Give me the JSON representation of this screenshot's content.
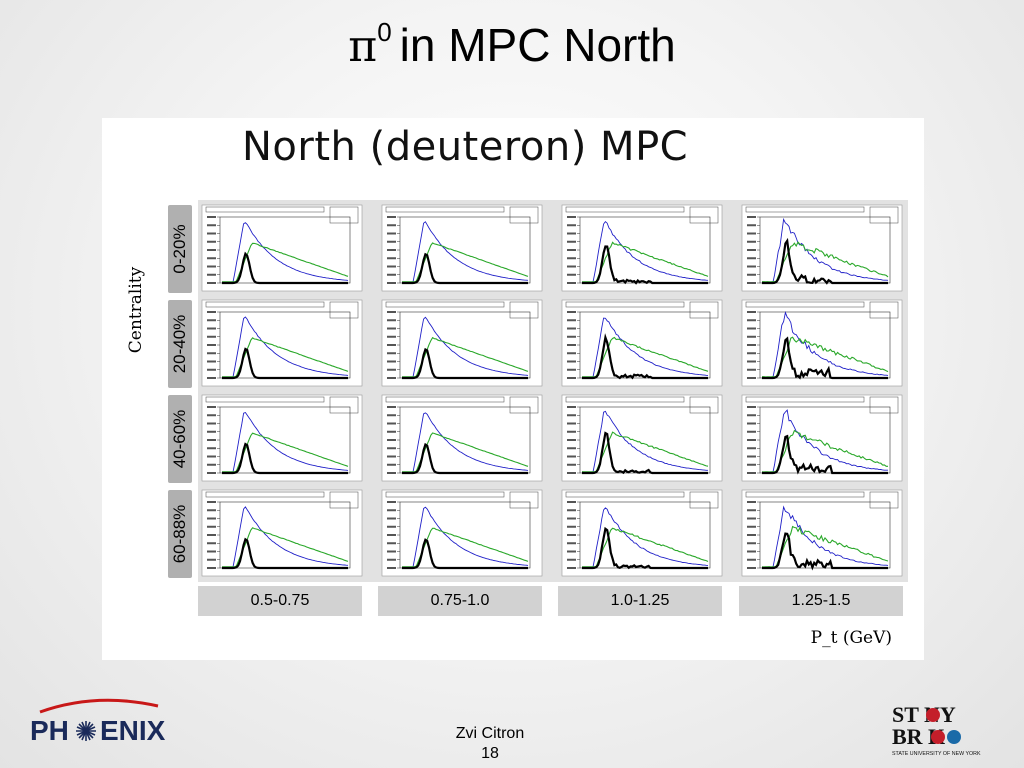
{
  "slide": {
    "title_symbol": "π",
    "title_sup": "0",
    "title_text": "in MPC North",
    "author": "Zvi Citron",
    "page_number": "18"
  },
  "logos": {
    "left_text_a": "PH",
    "left_text_b": "ENIX",
    "right_line1": "ST NY",
    "right_line2": "BR K",
    "right_line3": "STATE UNIVERSITY OF NEW YORK"
  },
  "chart_data": {
    "type": "grid",
    "title": "North (deuteron) MPC",
    "row_axis_label": "Centrality",
    "col_axis_label": "P_t (GeV)",
    "rows": [
      "0-20%",
      "20-40%",
      "40-60%",
      "60-88%"
    ],
    "columns": [
      "0.5-0.75",
      "0.75-1.0",
      "1.0-1.25",
      "1.25-1.5"
    ],
    "series": [
      {
        "color": "#2020c8"
      },
      {
        "color": "#2aa82a"
      },
      {
        "color": "#000000"
      }
    ]
  }
}
